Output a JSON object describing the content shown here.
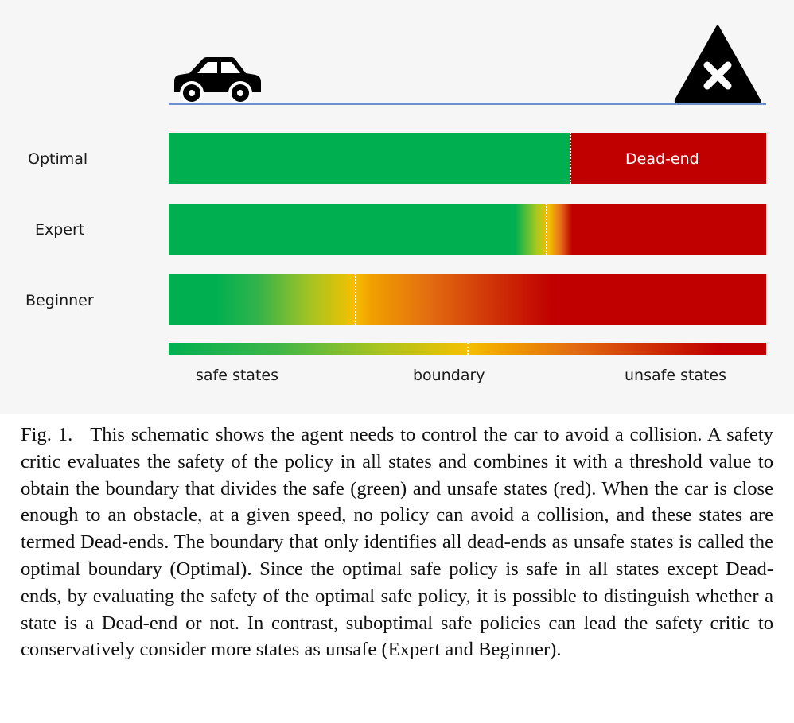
{
  "figure": {
    "icons": {
      "car": "car-icon",
      "obstacle": "warning-cross-icon"
    },
    "rows": [
      {
        "key": "optimal",
        "label": "Optimal"
      },
      {
        "key": "expert",
        "label": "Expert"
      },
      {
        "key": "beginner",
        "label": "Beginner"
      }
    ],
    "dead_end_label": "Dead-end",
    "legend": {
      "safe": "safe states",
      "boundary": "boundary",
      "unsafe": "unsafe states"
    },
    "colors": {
      "safe": "#00b050",
      "boundary": "#f5c000",
      "unsafe": "#c00000",
      "road": "#6f8fc9"
    }
  },
  "caption": {
    "lead": "Fig. 1.",
    "text": "This schematic shows the agent needs to control the car to avoid a collision. A safety critic evaluates the safety of the policy in all states and combines it with a threshold value to obtain the boundary that divides the safe (green) and unsafe states (red). When the car is close enough to an obstacle, at a given speed, no policy can avoid a collision, and these states are termed Dead-ends. The boundary that only identifies all dead-ends as unsafe states is called the optimal boundary (Optimal). Since the optimal safe policy is safe in all states except Dead-ends, by evaluating the safety of the optimal safe policy, it is possible to distinguish whether a state is a Dead-end or not. In contrast, suboptimal safe policies can lead the safety critic to conservatively consider more states as unsafe (Expert and Beginner)."
  }
}
